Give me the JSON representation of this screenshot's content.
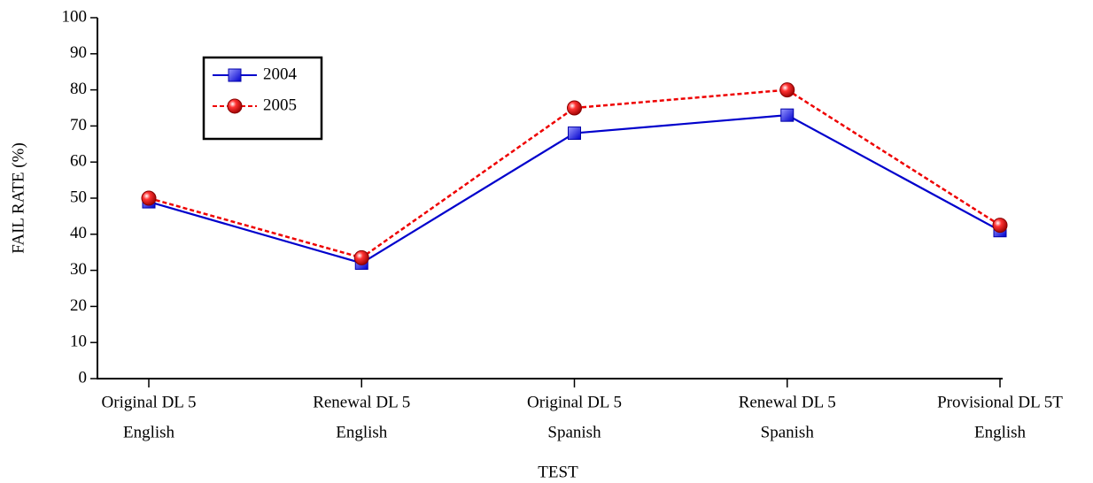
{
  "chart_data": {
    "type": "line",
    "x_label": "TEST",
    "y_label": "FAIL RATE (%)",
    "categories": [
      [
        "Original DL 5",
        "English"
      ],
      [
        "Renewal DL 5",
        "English"
      ],
      [
        "Original DL 5",
        "Spanish"
      ],
      [
        "Renewal DL 5",
        "Spanish"
      ],
      [
        "Provisional DL 5T",
        "English"
      ]
    ],
    "series": [
      {
        "name": "2004",
        "color": "#0000cc",
        "values": [
          49,
          32,
          68,
          73,
          41
        ]
      },
      {
        "name": "2005",
        "color": "#ee0000",
        "values": [
          50,
          33.5,
          75,
          80,
          42.5
        ]
      }
    ],
    "ylim": [
      0,
      100
    ],
    "yticks": [
      0,
      10,
      20,
      30,
      40,
      50,
      60,
      70,
      80,
      90,
      100
    ]
  }
}
